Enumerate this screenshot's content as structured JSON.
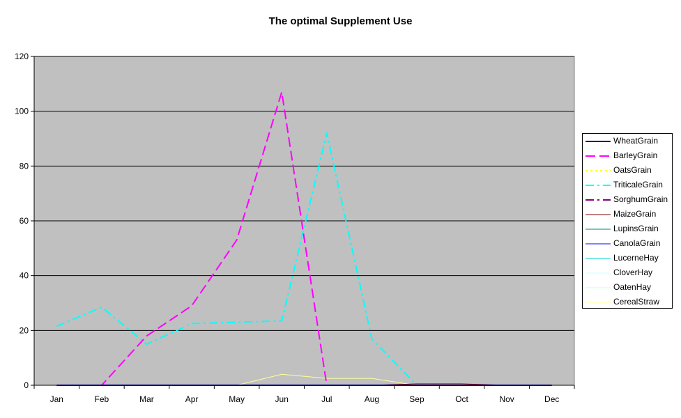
{
  "chart_data": {
    "type": "line",
    "title": "The optimal Supplement Use",
    "xlabel": "",
    "ylabel": "",
    "ylim": [
      0,
      120
    ],
    "yticks": [
      0,
      20,
      40,
      60,
      80,
      100,
      120
    ],
    "grid": true,
    "legend_position": "right",
    "plot_background": "#c0c0c0",
    "categories": [
      "Jan",
      "Feb",
      "Mar",
      "Apr",
      "May",
      "Jun",
      "Jul",
      "Aug",
      "Sep",
      "Oct",
      "Nov",
      "Dec"
    ],
    "series": [
      {
        "name": "WheatGrain",
        "color": "#000080",
        "dash": "solid",
        "width": 2,
        "values": [
          0,
          0,
          0,
          0,
          0,
          0,
          0,
          0,
          0,
          0,
          0,
          0
        ]
      },
      {
        "name": "BarleyGrain",
        "color": "#ff00ff",
        "dash": "longdash",
        "width": 2,
        "values": [
          0,
          0,
          18,
          29,
          53,
          107,
          0,
          0,
          0,
          0,
          0,
          0
        ]
      },
      {
        "name": "OatsGrain",
        "color": "#ffff00",
        "dash": "dot",
        "width": 2,
        "values": [
          0,
          0,
          0,
          0,
          0,
          0,
          0,
          0,
          0,
          0,
          0,
          0
        ]
      },
      {
        "name": "TriticaleGrain",
        "color": "#00ffff",
        "dash": "dashdot",
        "width": 2,
        "values": [
          21.5,
          28.5,
          15,
          22.5,
          23,
          23.5,
          92,
          17,
          0,
          0,
          0,
          0
        ]
      },
      {
        "name": "SorghumGrain",
        "color": "#800080",
        "dash": "dashdot",
        "width": 2,
        "values": [
          0,
          0,
          0,
          0,
          0,
          0,
          0,
          0,
          0,
          0,
          0,
          0
        ]
      },
      {
        "name": "MaizeGrain",
        "color": "#800000",
        "dash": "solid",
        "width": 1,
        "values": [
          0,
          0,
          0,
          0,
          0,
          0,
          0,
          0,
          0.5,
          0.5,
          0,
          0
        ]
      },
      {
        "name": "LupinsGrain",
        "color": "#008080",
        "dash": "solid",
        "width": 1,
        "values": [
          0,
          0,
          0,
          0,
          0,
          0,
          0,
          0,
          0,
          0,
          0,
          0
        ]
      },
      {
        "name": "CanolaGrain",
        "color": "#0000ff",
        "dash": "solid",
        "width": 1,
        "values": [
          0,
          0,
          0,
          0,
          0,
          0,
          0,
          0,
          0,
          0,
          0,
          0
        ]
      },
      {
        "name": "LucerneHay",
        "color": "#00cccc",
        "dash": "solid",
        "width": 1,
        "values": [
          0,
          0,
          0,
          0,
          0,
          0,
          0,
          0,
          0,
          0,
          0,
          0
        ]
      },
      {
        "name": "CloverHay",
        "color": "#ccffff",
        "dash": "solid",
        "width": 1,
        "values": [
          0,
          0,
          0,
          0,
          0,
          0,
          0,
          0,
          0,
          0,
          0,
          0
        ]
      },
      {
        "name": "OatenHay",
        "color": "#ccffcc",
        "dash": "solid",
        "width": 1,
        "values": [
          0,
          0,
          0,
          0,
          0,
          0,
          0,
          0,
          0,
          0,
          0,
          0
        ]
      },
      {
        "name": "CerealStraw",
        "color": "#ffff99",
        "dash": "solid",
        "width": 1,
        "values": [
          0,
          0,
          0,
          0,
          0,
          4,
          2.5,
          2.5,
          0,
          0,
          0,
          0
        ]
      }
    ]
  }
}
